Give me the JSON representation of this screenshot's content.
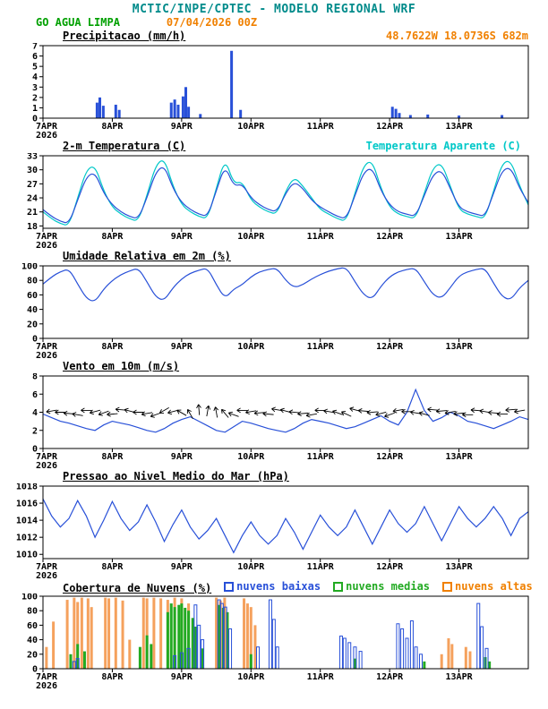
{
  "header": {
    "title": "MCTIC/INPE/CPTEC - MODELO REGIONAL WRF",
    "station": "GO AGUA LIMPA",
    "run": "07/04/2026 00Z",
    "coords": "48.7622W 18.0736S 682m"
  },
  "colors": {
    "model_title": "#008b8b",
    "station": "#00a000",
    "run_and_coords": "#f08000",
    "line_blue": "#2850d8",
    "line_cyan": "#00c8c8",
    "clouds_green": "#22aa22",
    "clouds_orange": "#f5a15d",
    "axis": "#000000"
  },
  "x_axis": {
    "ticks": [
      "7APR",
      "8APR",
      "9APR",
      "10APR",
      "11APR",
      "12APR",
      "13APR"
    ],
    "year": "2026",
    "tmax": 7,
    "dt_days": 0.125
  },
  "chart_data": [
    {
      "id": "precip",
      "type": "bar",
      "title": "Precipitacao (mm/h)",
      "ylabel": "mm/h",
      "ylim": [
        0,
        7
      ],
      "yticks": [
        0,
        1,
        2,
        3,
        4,
        5,
        6,
        7
      ],
      "color": "#2850d8",
      "bars": [
        [
          0.78,
          1.5
        ],
        [
          0.82,
          2.0
        ],
        [
          0.87,
          1.2
        ],
        [
          1.05,
          1.3
        ],
        [
          1.1,
          0.8
        ],
        [
          1.85,
          1.5
        ],
        [
          1.9,
          1.8
        ],
        [
          1.95,
          1.3
        ],
        [
          2.02,
          2.1
        ],
        [
          2.06,
          3.0
        ],
        [
          2.1,
          1.1
        ],
        [
          2.27,
          0.4
        ],
        [
          2.72,
          6.5
        ],
        [
          2.85,
          0.8
        ],
        [
          5.04,
          1.1
        ],
        [
          5.09,
          0.9
        ],
        [
          5.14,
          0.5
        ],
        [
          5.3,
          0.3
        ],
        [
          5.55,
          0.35
        ],
        [
          6.0,
          0.25
        ],
        [
          6.62,
          0.3
        ]
      ]
    },
    {
      "id": "temp",
      "type": "line",
      "title": "2-m Temperatura (C)",
      "legend": "Temperatura Aparente (C)",
      "ylim": [
        17.5,
        33
      ],
      "yticks": [
        18,
        21,
        24,
        27,
        30,
        33
      ],
      "series": [
        {
          "name": "Temperatura Aparente (C)",
          "color": "#00c8c8",
          "smooth": true,
          "values": [
            21,
            19.5,
            18.5,
            18,
            24,
            30,
            31,
            25.5,
            22,
            20.5,
            19.5,
            19,
            24.5,
            31,
            32.5,
            26.5,
            22.5,
            21,
            20,
            19.5,
            26,
            32.5,
            27,
            27.5,
            23.5,
            22,
            21,
            20.5,
            25.5,
            28.5,
            26.5,
            24,
            21.5,
            20.5,
            19.5,
            19,
            25,
            31,
            32,
            26,
            22,
            20.5,
            20,
            19.5,
            25,
            30.5,
            31.5,
            26.5,
            21.5,
            20.5,
            20,
            19.5,
            25.5,
            31.5,
            32,
            26.5,
            22.5
          ]
        },
        {
          "name": "2-m Temperatura (C)",
          "color": "#2850d8",
          "smooth": true,
          "values": [
            21.5,
            20,
            19,
            18.5,
            23.5,
            28.5,
            29.5,
            25,
            22.5,
            21,
            20,
            19.5,
            24,
            29.5,
            31,
            26,
            23,
            21.5,
            20.5,
            20,
            25.5,
            31,
            26.5,
            27,
            24,
            22.5,
            21.5,
            21,
            25,
            27.5,
            26,
            23.5,
            22,
            21,
            20,
            19.5,
            24.5,
            29.5,
            30.5,
            25.5,
            22.5,
            21,
            20.5,
            20,
            24.5,
            29,
            30,
            26,
            22,
            21,
            20.5,
            20,
            25,
            30,
            30.5,
            26,
            23
          ]
        }
      ]
    },
    {
      "id": "umid",
      "type": "line",
      "title": "Umidade Relativa em 2m (%)",
      "ylim": [
        0,
        100
      ],
      "yticks": [
        0,
        20,
        40,
        60,
        80,
        100
      ],
      "series": [
        {
          "name": "Umidade Relativa em 2m (%)",
          "color": "#2850d8",
          "smooth": true,
          "values": [
            75,
            85,
            92,
            96,
            75,
            55,
            50,
            68,
            80,
            88,
            93,
            97,
            78,
            57,
            52,
            70,
            82,
            90,
            94,
            97,
            74,
            55,
            68,
            74,
            85,
            92,
            95,
            97,
            80,
            70,
            74,
            82,
            88,
            93,
            96,
            98,
            78,
            60,
            54,
            72,
            85,
            92,
            95,
            97,
            78,
            60,
            55,
            70,
            86,
            92,
            95,
            97,
            76,
            57,
            53,
            70,
            80
          ]
        }
      ]
    },
    {
      "id": "vento",
      "type": "wind",
      "title": "Vento em 10m (m/s)",
      "ylim": [
        0,
        8
      ],
      "yticks": [
        0,
        2,
        4,
        6,
        8
      ],
      "barb_y": 4,
      "barb_dirs": [
        185,
        190,
        180,
        175,
        170,
        180,
        195,
        200,
        185,
        175,
        165,
        180,
        190,
        200,
        210,
        195,
        150,
        120,
        95,
        80,
        100,
        130,
        160,
        180,
        190,
        185,
        175,
        170,
        165,
        175,
        185,
        190,
        180,
        170,
        160,
        155,
        165,
        175,
        185,
        195,
        200,
        190,
        180,
        170,
        165,
        175,
        185,
        190,
        185,
        180,
        175,
        170,
        175,
        180,
        185,
        190,
        185
      ],
      "series": [
        {
          "name": "Vento em 10m (m/s)",
          "color": "#2850d8",
          "smooth": false,
          "values": [
            3.8,
            3.4,
            3,
            2.8,
            2.5,
            2.2,
            2,
            2.6,
            3,
            2.8,
            2.6,
            2.3,
            2,
            1.8,
            2.2,
            2.8,
            3.2,
            3.5,
            3,
            2.5,
            2,
            1.8,
            2.4,
            3,
            2.8,
            2.5,
            2.2,
            2,
            1.8,
            2.2,
            2.8,
            3.2,
            3,
            2.8,
            2.5,
            2.2,
            2.4,
            2.8,
            3.2,
            3.6,
            3,
            2.6,
            4,
            6.5,
            4.2,
            3,
            3.4,
            4,
            3.6,
            3,
            2.8,
            2.5,
            2.2,
            2.6,
            3,
            3.5,
            3.2
          ]
        }
      ]
    },
    {
      "id": "press",
      "type": "line",
      "title": "Pressao ao Nivel Medio do Mar (hPa)",
      "ylim": [
        1009.5,
        1018
      ],
      "yticks": [
        1010,
        1012,
        1014,
        1016,
        1018
      ],
      "series": [
        {
          "name": "Pressao ao Nivel Medio do Mar (hPa)",
          "color": "#2850d8",
          "smooth": false,
          "values": [
            1016.5,
            1014.5,
            1013.2,
            1014.2,
            1016.3,
            1014.5,
            1012,
            1014,
            1016.2,
            1014.2,
            1012.8,
            1013.8,
            1015.8,
            1013.8,
            1011.5,
            1013.5,
            1015.2,
            1013.2,
            1011.8,
            1012.8,
            1014.2,
            1012.2,
            1010.2,
            1012.2,
            1013.8,
            1012.2,
            1011.2,
            1012.2,
            1014.2,
            1012.6,
            1010.6,
            1012.6,
            1014.6,
            1013.2,
            1012.2,
            1013.2,
            1015.2,
            1013.2,
            1011.2,
            1013.2,
            1015.2,
            1013.6,
            1012.6,
            1013.6,
            1015.6,
            1013.6,
            1011.6,
            1013.6,
            1015.6,
            1014.2,
            1013.2,
            1014.2,
            1015.6,
            1014.2,
            1012.2,
            1014.2,
            1015
          ]
        }
      ]
    },
    {
      "id": "clouds",
      "type": "multibar",
      "title": "Cobertura de Nuvens (%)",
      "ylim": [
        0,
        100
      ],
      "yticks": [
        0,
        20,
        40,
        60,
        80,
        100
      ],
      "legend": [
        {
          "label": "nuvens baixas",
          "color": "#2850d8"
        },
        {
          "label": "nuvens medias",
          "color": "#22aa22"
        },
        {
          "label": "nuvens altas",
          "color": "#f08000"
        }
      ],
      "series": [
        {
          "name": "nuvens altas",
          "color": "#f5a15d",
          "hollow": false,
          "bars": [
            [
              0.05,
              30
            ],
            [
              0.15,
              65
            ],
            [
              0.35,
              95
            ],
            [
              0.45,
              98
            ],
            [
              0.5,
              92
            ],
            [
              0.56,
              98
            ],
            [
              0.65,
              97
            ],
            [
              0.7,
              85
            ],
            [
              0.9,
              98
            ],
            [
              0.95,
              97
            ],
            [
              1.05,
              98
            ],
            [
              1.15,
              94
            ],
            [
              1.25,
              40
            ],
            [
              1.45,
              98
            ],
            [
              1.5,
              97
            ],
            [
              1.6,
              98
            ],
            [
              1.7,
              97
            ],
            [
              1.8,
              95
            ],
            [
              1.9,
              98
            ],
            [
              2.0,
              97
            ],
            [
              2.1,
              90
            ],
            [
              2.5,
              98
            ],
            [
              2.56,
              94
            ],
            [
              2.62,
              98
            ],
            [
              2.9,
              97
            ],
            [
              2.95,
              90
            ],
            [
              3.0,
              85
            ],
            [
              3.06,
              60
            ],
            [
              5.75,
              20
            ],
            [
              5.85,
              42
            ],
            [
              5.9,
              34
            ],
            [
              6.1,
              30
            ],
            [
              6.16,
              24
            ]
          ]
        },
        {
          "name": "nuvens medias",
          "color": "#22aa22",
          "hollow": false,
          "bars": [
            [
              0.4,
              20
            ],
            [
              0.5,
              34
            ],
            [
              0.6,
              24
            ],
            [
              1.4,
              30
            ],
            [
              1.5,
              46
            ],
            [
              1.56,
              34
            ],
            [
              1.8,
              78
            ],
            [
              1.85,
              90
            ],
            [
              1.9,
              85
            ],
            [
              1.96,
              88
            ],
            [
              2.0,
              90
            ],
            [
              2.05,
              84
            ],
            [
              2.1,
              80
            ],
            [
              2.16,
              70
            ],
            [
              2.2,
              58
            ],
            [
              2.3,
              28
            ],
            [
              2.54,
              88
            ],
            [
              2.6,
              84
            ],
            [
              2.66,
              78
            ],
            [
              3.0,
              20
            ],
            [
              4.5,
              14
            ],
            [
              5.5,
              10
            ],
            [
              6.38,
              16
            ],
            [
              6.44,
              10
            ]
          ]
        },
        {
          "name": "nuvens baixas",
          "color": "#2850d8",
          "hollow": true,
          "bars": [
            [
              0.45,
              10
            ],
            [
              0.5,
              14
            ],
            [
              1.9,
              18
            ],
            [
              2.0,
              22
            ],
            [
              2.1,
              28
            ],
            [
              2.2,
              88
            ],
            [
              2.25,
              60
            ],
            [
              2.3,
              40
            ],
            [
              2.54,
              95
            ],
            [
              2.58,
              90
            ],
            [
              2.63,
              85
            ],
            [
              2.7,
              55
            ],
            [
              3.1,
              30
            ],
            [
              3.28,
              95
            ],
            [
              3.33,
              68
            ],
            [
              3.38,
              30
            ],
            [
              4.3,
              45
            ],
            [
              4.35,
              42
            ],
            [
              4.42,
              36
            ],
            [
              4.5,
              30
            ],
            [
              4.58,
              24
            ],
            [
              5.12,
              62
            ],
            [
              5.18,
              55
            ],
            [
              5.25,
              42
            ],
            [
              5.32,
              66
            ],
            [
              5.38,
              30
            ],
            [
              5.45,
              20
            ],
            [
              6.28,
              90
            ],
            [
              6.33,
              58
            ],
            [
              6.4,
              28
            ]
          ]
        }
      ]
    }
  ]
}
